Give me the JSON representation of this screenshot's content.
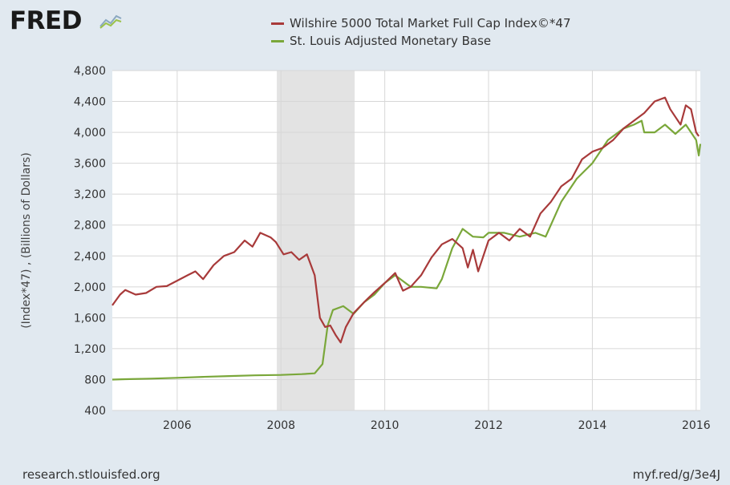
{
  "brand": {
    "logo_text": "FRED",
    "logo_icon": "line-chart-icon"
  },
  "footer": {
    "source": "research.stlouisfed.org",
    "short_url": "myf.red/g/3e4J"
  },
  "colors": {
    "series1": "#a83a3a",
    "series2": "#7aa73a",
    "recession": "#e3e3e3",
    "grid": "#d7d7d7"
  },
  "chart_data": {
    "type": "line",
    "title": "",
    "xlabel": "",
    "ylabel": "(Index*47) , (Billions of Dollars)",
    "xlim": [
      2004.75,
      2016.08
    ],
    "ylim": [
      400,
      4800
    ],
    "xticks": [
      2006,
      2008,
      2010,
      2012,
      2014,
      2016
    ],
    "yticks": [
      400,
      800,
      1200,
      1600,
      2000,
      2400,
      2800,
      3200,
      3600,
      4000,
      4400,
      4800
    ],
    "ytick_labels": [
      "400",
      "800",
      "1,200",
      "1,600",
      "2,000",
      "2,400",
      "2,800",
      "3,200",
      "3,600",
      "4,000",
      "4,400",
      "4,800"
    ],
    "grid": true,
    "legend_position": "top",
    "recessions": [
      [
        2007.92,
        2009.42
      ]
    ],
    "series": [
      {
        "name": "Wilshire 5000 Total Market Full Cap Index©*47",
        "color": "#a83a3a",
        "x": [
          2004.75,
          2004.9,
          2005.0,
          2005.2,
          2005.4,
          2005.6,
          2005.8,
          2006.0,
          2006.2,
          2006.35,
          2006.5,
          2006.7,
          2006.9,
          2007.1,
          2007.3,
          2007.45,
          2007.6,
          2007.8,
          2007.9,
          2008.05,
          2008.2,
          2008.35,
          2008.5,
          2008.65,
          2008.75,
          2008.85,
          2008.95,
          2009.05,
          2009.15,
          2009.25,
          2009.4,
          2009.6,
          2009.8,
          2010.0,
          2010.2,
          2010.35,
          2010.5,
          2010.7,
          2010.9,
          2011.1,
          2011.3,
          2011.5,
          2011.6,
          2011.7,
          2011.8,
          2012.0,
          2012.2,
          2012.4,
          2012.6,
          2012.8,
          2013.0,
          2013.2,
          2013.4,
          2013.6,
          2013.8,
          2014.0,
          2014.2,
          2014.4,
          2014.6,
          2014.8,
          2015.0,
          2015.2,
          2015.4,
          2015.5,
          2015.6,
          2015.7,
          2015.8,
          2015.9,
          2016.0,
          2016.05
        ],
        "values": [
          1760,
          1900,
          1960,
          1900,
          1920,
          2000,
          2010,
          2080,
          2150,
          2200,
          2100,
          2280,
          2400,
          2450,
          2600,
          2520,
          2700,
          2640,
          2580,
          2420,
          2450,
          2350,
          2420,
          2150,
          1600,
          1480,
          1500,
          1380,
          1280,
          1480,
          1660,
          1800,
          1930,
          2050,
          2180,
          1950,
          2000,
          2150,
          2380,
          2550,
          2620,
          2500,
          2250,
          2480,
          2200,
          2600,
          2700,
          2600,
          2750,
          2650,
          2950,
          3100,
          3300,
          3400,
          3650,
          3750,
          3800,
          3900,
          4050,
          4150,
          4250,
          4400,
          4450,
          4300,
          4200,
          4100,
          4350,
          4300,
          4000,
          3950
        ]
      },
      {
        "name": "St. Louis Adjusted Monetary Base",
        "color": "#7aa73a",
        "x": [
          2004.75,
          2005.0,
          2005.5,
          2006.0,
          2006.5,
          2007.0,
          2007.5,
          2008.0,
          2008.4,
          2008.65,
          2008.8,
          2008.9,
          2009.0,
          2009.2,
          2009.4,
          2009.6,
          2009.8,
          2010.0,
          2010.2,
          2010.5,
          2010.7,
          2011.0,
          2011.1,
          2011.3,
          2011.5,
          2011.7,
          2011.9,
          2012.0,
          2012.3,
          2012.6,
          2012.9,
          2013.1,
          2013.4,
          2013.7,
          2014.0,
          2014.3,
          2014.6,
          2014.8,
          2014.95,
          2015.0,
          2015.2,
          2015.4,
          2015.6,
          2015.8,
          2015.9,
          2016.0,
          2016.05,
          2016.08
        ],
        "values": [
          800,
          805,
          812,
          822,
          835,
          845,
          855,
          860,
          870,
          880,
          1000,
          1500,
          1700,
          1750,
          1650,
          1800,
          1900,
          2050,
          2150,
          2000,
          2000,
          1980,
          2100,
          2500,
          2750,
          2650,
          2640,
          2700,
          2700,
          2650,
          2700,
          2650,
          3100,
          3400,
          3600,
          3900,
          4050,
          4100,
          4150,
          4000,
          4000,
          4100,
          3980,
          4100,
          4000,
          3900,
          3700,
          3850
        ]
      }
    ]
  }
}
